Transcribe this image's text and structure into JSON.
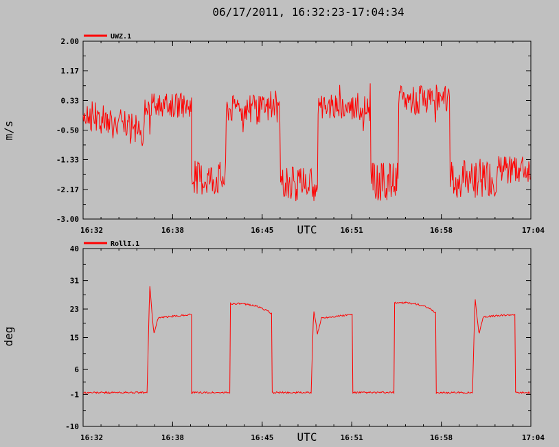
{
  "title": "06/17/2011, 16:32:23-17:04:34",
  "chart_data": [
    {
      "type": "line",
      "series": [
        {
          "name": "UWZ.1",
          "color": "#ff0000"
        }
      ],
      "ylabel": "m/s",
      "xlabel": "UTC",
      "yticks": [
        "2.00",
        "1.17",
        "0.33",
        "-0.50",
        "-1.33",
        "-2.17",
        "-3.00"
      ],
      "ytick_values": [
        2.0,
        1.17,
        0.33,
        -0.5,
        -1.33,
        -2.17,
        -3.0
      ],
      "ylim": [
        -3.0,
        2.0
      ],
      "xticks": [
        "16:32",
        "16:38",
        "16:45",
        "16:51",
        "16:58",
        "17:04"
      ],
      "xlim_minutes": [
        0,
        32.2
      ],
      "segments": [
        {
          "t0": 0.0,
          "t1": 4.4,
          "level": 0.0,
          "noise": 0.45,
          "drift": -0.6
        },
        {
          "t0": 4.4,
          "t1": 7.8,
          "level": 0.2,
          "noise": 0.35,
          "drift": 0.0
        },
        {
          "t0": 7.8,
          "t1": 10.3,
          "level": -1.85,
          "noise": 0.5,
          "drift": 0.0
        },
        {
          "t0": 10.3,
          "t1": 14.2,
          "level": 0.1,
          "noise": 0.4,
          "drift": 0.0
        },
        {
          "t0": 14.2,
          "t1": 16.9,
          "level": -2.0,
          "noise": 0.5,
          "drift": 0.0
        },
        {
          "t0": 16.9,
          "t1": 20.7,
          "level": 0.15,
          "noise": 0.4,
          "drift": 0.0
        },
        {
          "t0": 20.7,
          "t1": 22.7,
          "level": -1.95,
          "noise": 0.55,
          "drift": 0.0
        },
        {
          "t0": 22.7,
          "t1": 26.4,
          "level": 0.35,
          "noise": 0.4,
          "drift": 0.0
        },
        {
          "t0": 26.4,
          "t1": 29.9,
          "level": -1.85,
          "noise": 0.55,
          "drift": 0.0
        },
        {
          "t0": 29.9,
          "t1": 32.2,
          "level": -1.6,
          "noise": 0.4,
          "drift": 0.0
        }
      ]
    },
    {
      "type": "line",
      "series": [
        {
          "name": "RollI.1",
          "color": "#ff0000"
        }
      ],
      "ylabel": "deg",
      "xlabel": "UTC",
      "yticks": [
        "40",
        "31",
        "23",
        "15",
        "6",
        "-1",
        "-10"
      ],
      "ytick_values": [
        40,
        31,
        23,
        15,
        6,
        -1,
        -10
      ],
      "ylim": [
        -10,
        40
      ],
      "xticks": [
        "16:32",
        "16:38",
        "16:45",
        "16:51",
        "16:58",
        "17:04"
      ],
      "xlim_minutes": [
        0,
        32.2
      ],
      "segments": [
        {
          "t0": 0.0,
          "t1": 4.6,
          "shape": "low",
          "level": -0.5
        },
        {
          "t0": 4.6,
          "t1": 7.8,
          "shape": "spike-plateau",
          "peak": 30,
          "level": 20.5,
          "end": 21.5
        },
        {
          "t0": 7.8,
          "t1": 10.6,
          "shape": "low",
          "level": -0.5
        },
        {
          "t0": 10.6,
          "t1": 13.6,
          "shape": "arch",
          "level": 24.5,
          "end": 21.5
        },
        {
          "t0": 13.6,
          "t1": 16.4,
          "shape": "low",
          "level": -0.5
        },
        {
          "t0": 16.4,
          "t1": 19.4,
          "shape": "spike-plateau",
          "peak": 23,
          "level": 20.5,
          "end": 21.5
        },
        {
          "t0": 19.4,
          "t1": 22.4,
          "shape": "low",
          "level": -0.5
        },
        {
          "t0": 22.4,
          "t1": 25.4,
          "shape": "arch",
          "level": 24.8,
          "end": 21.5
        },
        {
          "t0": 25.4,
          "t1": 28.0,
          "shape": "low",
          "level": -0.5
        },
        {
          "t0": 28.0,
          "t1": 31.1,
          "shape": "spike-plateau",
          "peak": 26,
          "level": 20.8,
          "end": 21.5
        },
        {
          "t0": 31.1,
          "t1": 32.2,
          "shape": "low",
          "level": -0.5
        }
      ]
    }
  ]
}
